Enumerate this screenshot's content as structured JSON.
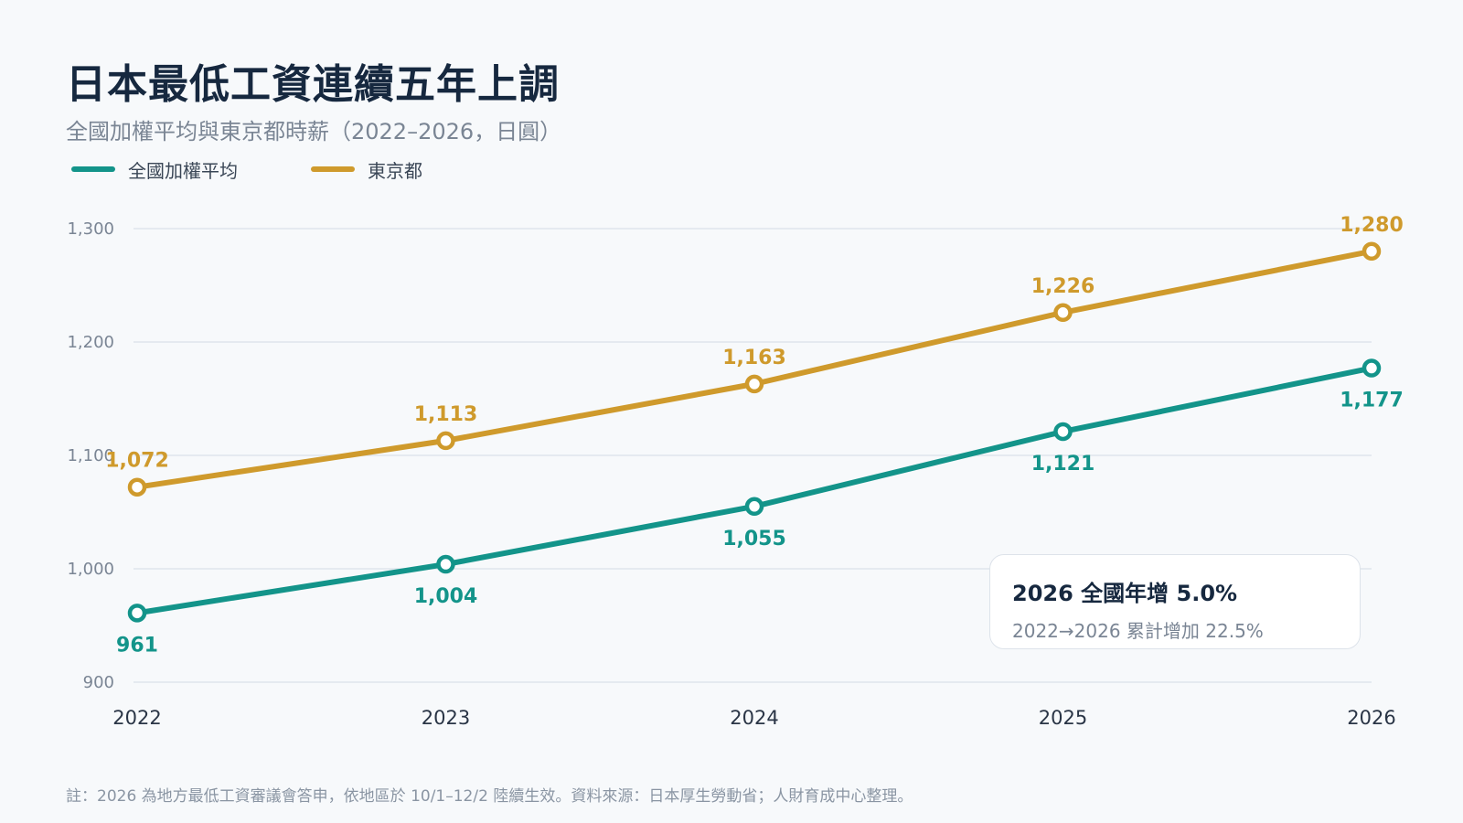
{
  "header": {
    "title": "日本最低工資連續五年上調",
    "subtitle": "全國加權平均與東京都時薪（2022–2026，日圓）"
  },
  "legend": {
    "items": [
      {
        "label": "全國加權平均",
        "color": "#13948a"
      },
      {
        "label": "東京都",
        "color": "#cf9a2c"
      }
    ]
  },
  "chart_data": {
    "type": "line",
    "x": [
      "2022",
      "2023",
      "2024",
      "2025",
      "2026"
    ],
    "ylim": [
      900,
      1300
    ],
    "yticks": [
      900,
      1000,
      1100,
      1200,
      1300
    ],
    "ytick_labels": [
      "900",
      "1,000",
      "1,100",
      "1,200",
      "1,300"
    ],
    "grid": true,
    "legend_position": "top-left",
    "series": [
      {
        "name": "全國加權平均",
        "color": "#13948a",
        "values": [
          961,
          1004,
          1055,
          1121,
          1177
        ],
        "labels": [
          "961",
          "1,004",
          "1,055",
          "1,121",
          "1,177"
        ],
        "label_placement": "below"
      },
      {
        "name": "東京都",
        "color": "#cf9a2c",
        "values": [
          1072,
          1113,
          1163,
          1226,
          1280
        ],
        "labels": [
          "1,072",
          "1,113",
          "1,163",
          "1,226",
          "1,280"
        ],
        "label_placement": "above"
      }
    ]
  },
  "callout": {
    "title": "2026 全國年增 5.0%",
    "subtitle": "2022→2026 累計增加 22.5%"
  },
  "footnote": "註：2026 為地方最低工資審議會答申，依地區於 10/1–12/2 陸續生效。資料來源：日本厚生勞動省；人財育成中心整理。",
  "colors": {
    "background": "#f7f9fb",
    "grid": "#dfe5ec",
    "axis_text": "#7a8594",
    "title": "#16283f"
  }
}
